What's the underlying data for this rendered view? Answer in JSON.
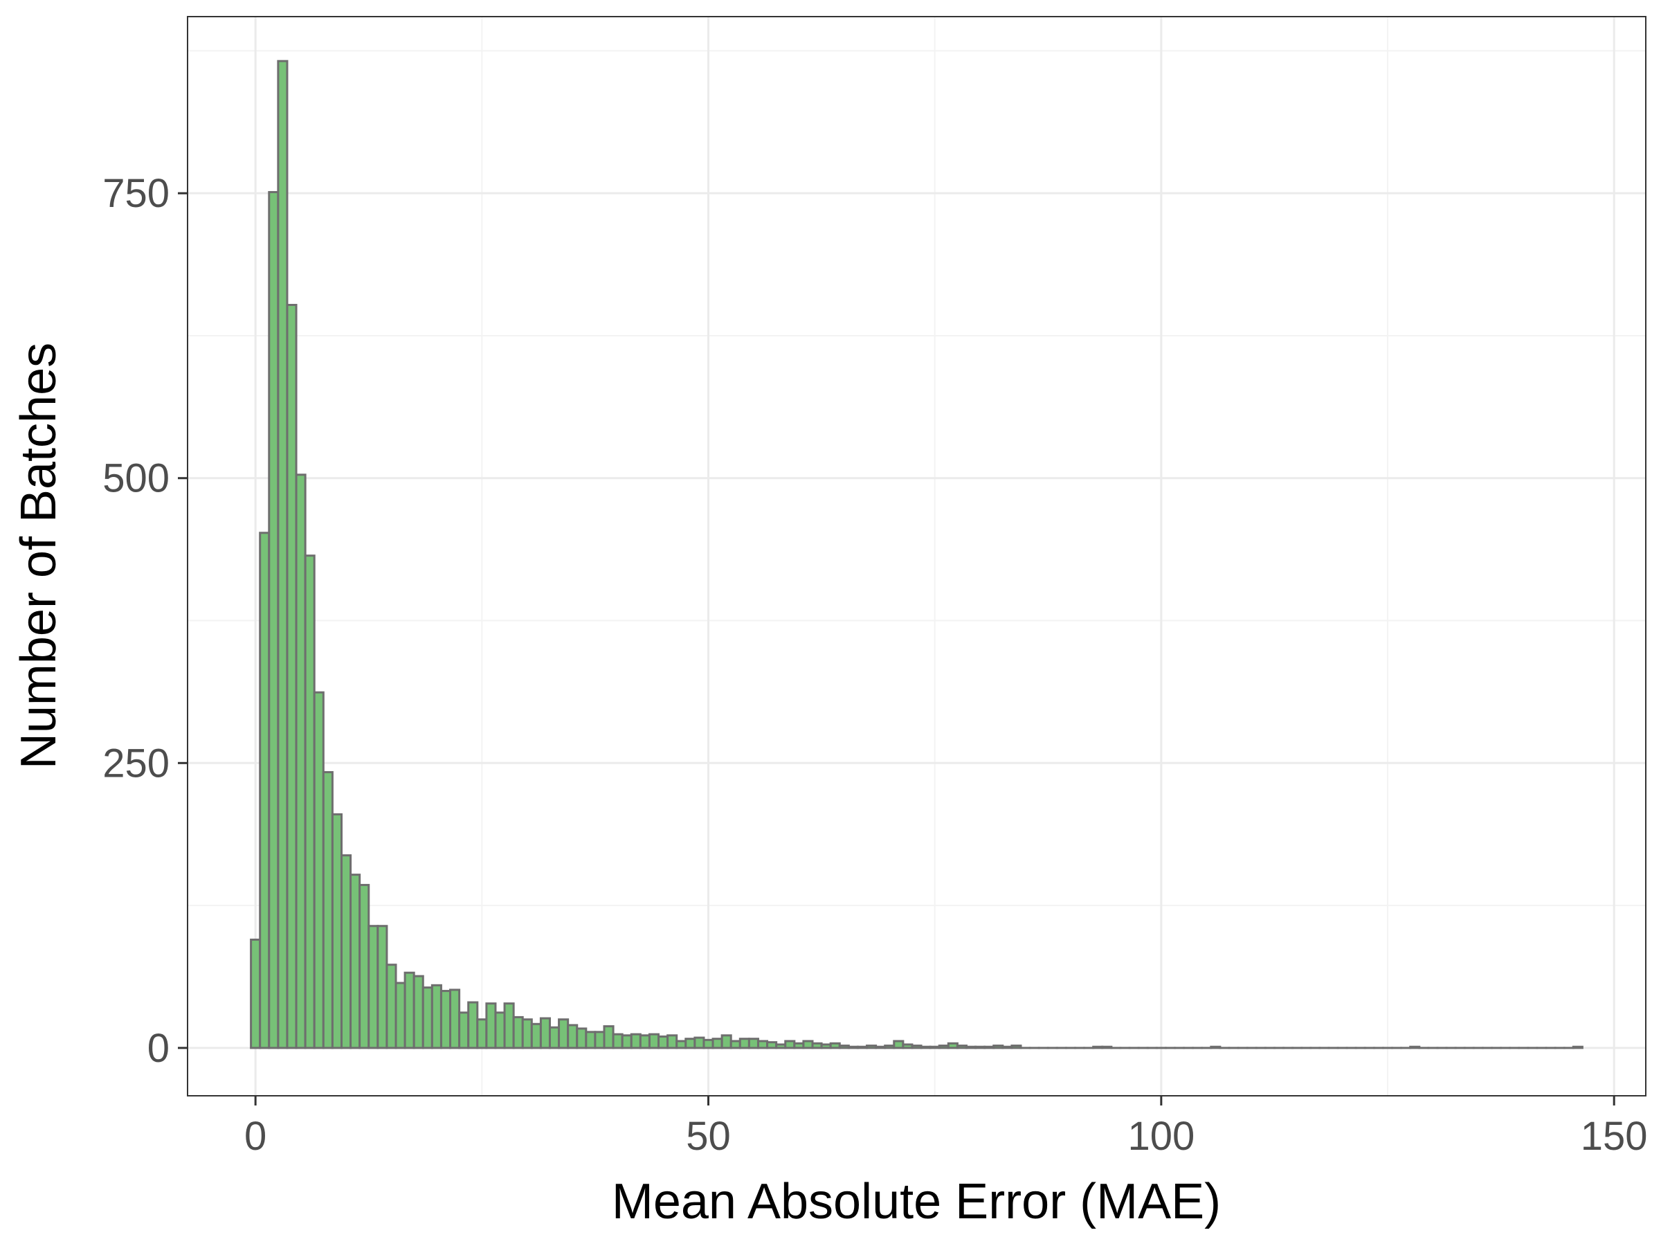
{
  "chart_data": {
    "type": "bar",
    "title": "",
    "xlabel": "Mean Absolute Error (MAE)",
    "ylabel": "Number of Batches",
    "xlim": [
      -7.5,
      153.5
    ],
    "ylim": [
      -42,
      905
    ],
    "x_ticks": [
      0,
      50,
      100,
      150
    ],
    "x_tick_labels": [
      "0",
      "50",
      "100",
      "150"
    ],
    "y_ticks": [
      0,
      250,
      500,
      750
    ],
    "y_tick_labels": [
      "0",
      "250",
      "500",
      "750"
    ],
    "grid": true,
    "legend": "none",
    "bin_width": 1,
    "bin_start": -0.5,
    "counts": [
      95,
      452,
      751,
      866,
      652,
      503,
      432,
      312,
      242,
      205,
      169,
      152,
      143,
      107,
      107,
      73,
      57,
      66,
      63,
      53,
      55,
      50,
      51,
      31,
      40,
      25,
      39,
      31,
      39,
      27,
      25,
      21,
      26,
      18,
      25,
      20,
      17,
      14,
      14,
      19,
      12,
      11,
      12,
      11,
      12,
      10,
      11,
      6,
      8,
      9,
      7,
      8,
      11,
      6,
      8,
      8,
      6,
      5,
      3,
      6,
      4,
      6,
      4,
      3,
      4,
      2,
      1,
      1,
      2,
      1,
      2,
      6,
      3,
      2,
      1,
      1,
      2,
      4,
      2,
      1,
      1,
      1,
      2,
      1,
      2,
      0,
      0,
      0,
      0,
      0,
      0,
      0,
      0,
      1,
      1,
      0,
      0,
      0,
      0,
      0,
      0,
      0,
      0,
      0,
      0,
      0,
      1,
      0,
      0,
      0,
      0,
      0,
      0,
      0,
      0,
      0,
      0,
      0,
      0,
      0,
      0,
      0,
      0,
      0,
      0,
      0,
      0,
      0,
      1,
      0,
      0,
      0,
      0,
      0,
      0,
      0,
      0,
      0,
      0,
      0,
      0,
      0,
      0,
      0,
      0,
      0,
      1
    ],
    "colors": {
      "bar_fill": "#77c177",
      "bar_stroke": "#6e6e6e",
      "grid_major": "#ebebeb",
      "grid_minor": "#f3f3f3",
      "panel_border": "#333333",
      "tick_text": "#4d4d4d"
    }
  }
}
